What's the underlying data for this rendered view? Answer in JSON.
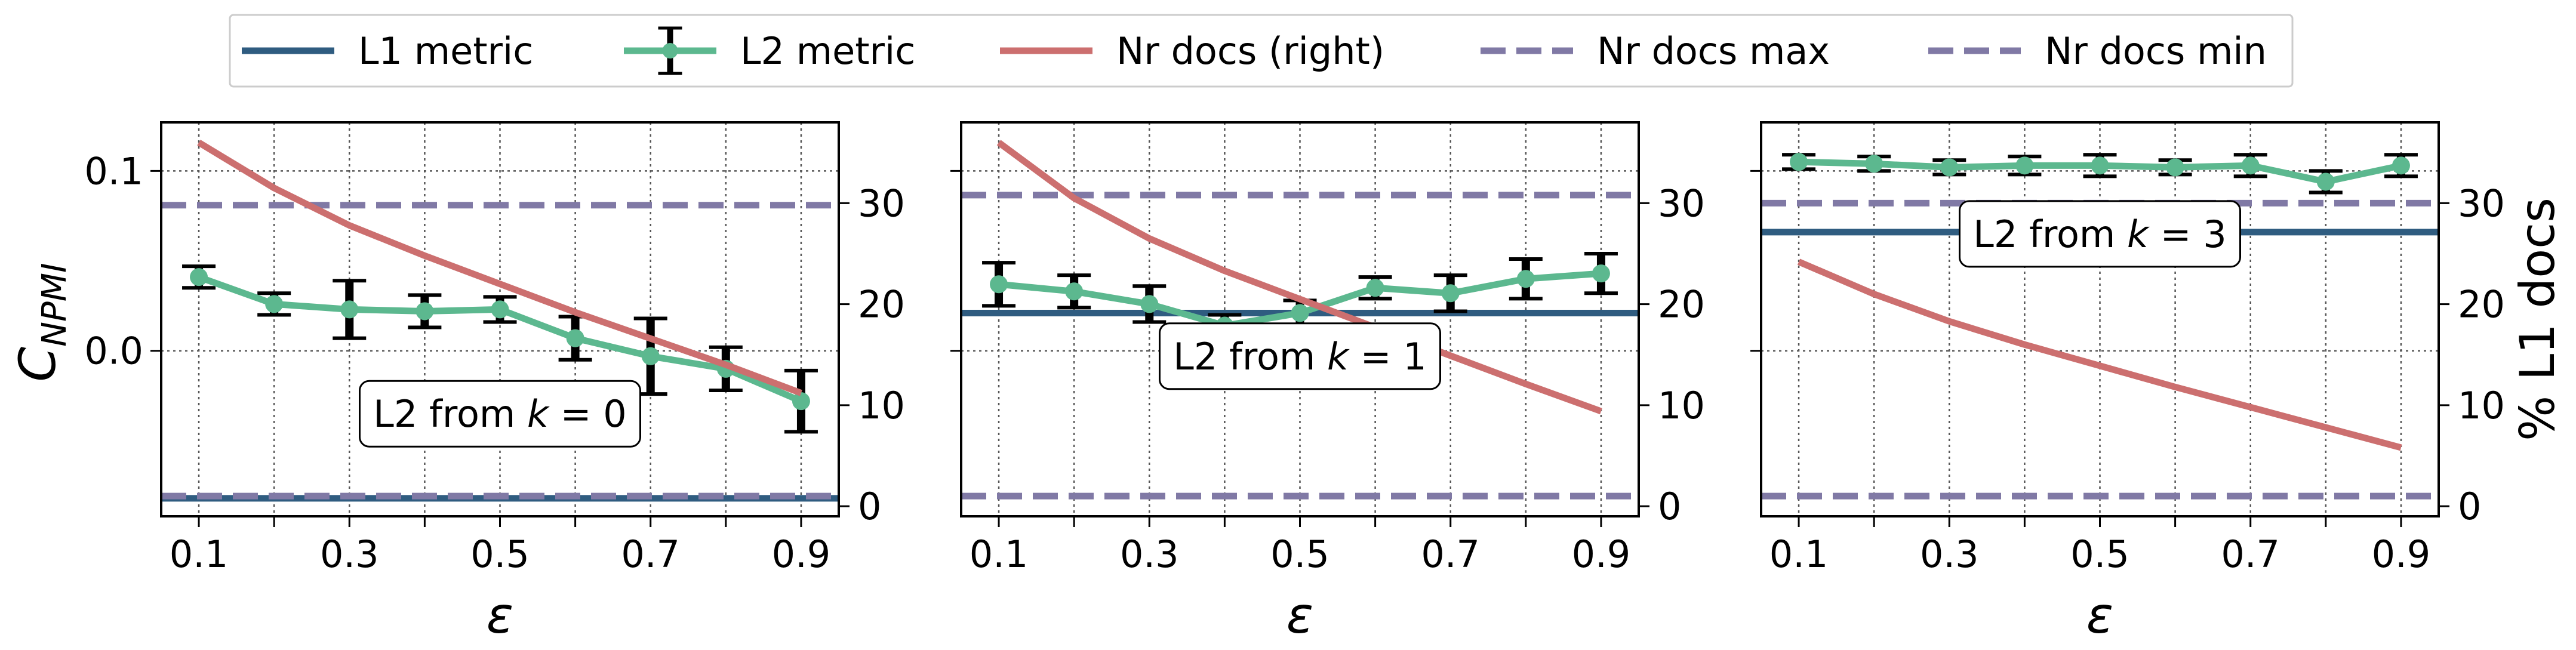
{
  "colors": {
    "l1": "#2f5c80",
    "l2": "#5cb88f",
    "nr_docs": "#cc6f6f",
    "nr_docs_bounds": "#8079a5",
    "grid": "#555555"
  },
  "chart_data": {
    "type": "line",
    "legend": {
      "placement": "top-center",
      "entries": [
        "L1 metric",
        "L2 metric",
        "Nr docs (right)",
        "Nr docs max",
        "Nr docs min"
      ]
    },
    "shared": {
      "x": [
        0.1,
        0.2,
        0.3,
        0.4,
        0.5,
        0.6,
        0.7,
        0.8,
        0.9
      ],
      "xlim": [
        0.05,
        0.95
      ],
      "xticks": [
        0.1,
        0.3,
        0.5,
        0.7,
        0.9
      ],
      "xtick_labels": [
        "0.1",
        "0.3",
        "0.5",
        "0.7",
        "0.9"
      ],
      "xlabel": "ε",
      "ylabel_left": "C",
      "ylabel_left_sub": "NPMI",
      "ylabel_right": "% L1 docs",
      "ylim_left": [
        -0.092,
        0.127
      ],
      "yticks_left": [
        0.0,
        0.1
      ],
      "ytick_labels_left": [
        "0.0",
        "0.1"
      ],
      "ylim_right": [
        -1,
        38
      ],
      "yticks_right": [
        0,
        10,
        20,
        30
      ],
      "ytick_labels_right": [
        "0",
        "10",
        "20",
        "30"
      ],
      "grid": true
    },
    "panels": [
      {
        "annotation": {
          "prefix": "L2 from ",
          "k": "k",
          "eq": " = ",
          "value": "0"
        },
        "annotation_anchor": {
          "x": 0.5,
          "y": -0.035
        },
        "l1": -0.082,
        "l2": {
          "values": [
            0.041,
            0.026,
            0.023,
            0.022,
            0.023,
            0.007,
            -0.003,
            -0.01,
            -0.028
          ],
          "errors": [
            0.006,
            0.006,
            0.016,
            0.009,
            0.007,
            0.012,
            0.021,
            0.012,
            0.017
          ]
        },
        "nr_docs": [
          36.0,
          31.5,
          27.8,
          24.8,
          22.0,
          19.2,
          16.6,
          14.0,
          11.2
        ],
        "nr_docs_max": 29.8,
        "nr_docs_min": 1.0
      },
      {
        "annotation": {
          "prefix": "L2 from ",
          "k": "k",
          "eq": " = ",
          "value": "1"
        },
        "annotation_anchor": {
          "x": 0.5,
          "y": -0.003
        },
        "l1": 0.021,
        "l2": {
          "values": [
            0.037,
            0.033,
            0.026,
            0.014,
            0.021,
            0.035,
            0.032,
            0.04,
            0.043
          ],
          "errors": [
            0.012,
            0.009,
            0.01,
            0.006,
            0.007,
            0.006,
            0.01,
            0.011,
            0.011
          ]
        },
        "nr_docs": [
          36.0,
          30.5,
          26.5,
          23.3,
          20.5,
          17.7,
          14.9,
          12.1,
          9.4
        ],
        "nr_docs_max": 30.8,
        "nr_docs_min": 1.0
      },
      {
        "annotation": {
          "prefix": "L2 from ",
          "k": "k",
          "eq": " = ",
          "value": "3"
        },
        "annotation_anchor": {
          "x": 0.5,
          "y": 0.065
        },
        "l1": 0.066,
        "l2": {
          "values": [
            0.105,
            0.104,
            0.102,
            0.103,
            0.103,
            0.102,
            0.103,
            0.094,
            0.103
          ],
          "errors": [
            0.004,
            0.004,
            0.004,
            0.005,
            0.006,
            0.004,
            0.006,
            0.006,
            0.006
          ]
        },
        "nr_docs": [
          24.2,
          21.0,
          18.3,
          16.0,
          13.9,
          11.8,
          9.8,
          7.8,
          5.8
        ],
        "nr_docs_max": 30.0,
        "nr_docs_min": 1.0
      }
    ]
  }
}
